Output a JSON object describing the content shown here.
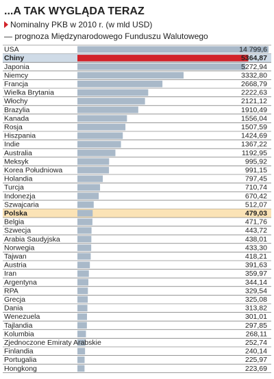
{
  "chart_data": {
    "type": "bar",
    "title": "...A TAK WYGLĄDA TERAZ",
    "subtitle": [
      "Nominalny PKB w 2010 r. (w mld USD)",
      "— prognoza Międzynarodowego Funduszu Walutowego"
    ],
    "categories": [
      "USA",
      "Chiny",
      "Japonia",
      "Niemcy",
      "Francja",
      "Wielka Brytania",
      "Włochy",
      "Brazylia",
      "Kanada",
      "Rosja",
      "Hiszpania",
      "Indie",
      "Australia",
      "Meksyk",
      "Korea Południowa",
      "Holandia",
      "Turcja",
      "Indonezja",
      "Szwajcaria",
      "Polska",
      "Belgia",
      "Szwecja",
      "Arabia Saudyjska",
      "Norwegia",
      "Tajwan",
      "Austria",
      "Iran",
      "Argentyna",
      "RPA",
      "Grecja",
      "Dania",
      "Wenezuela",
      "Tajlandia",
      "Kolumbia",
      "Zjednoczone Emiraty Arabskie",
      "Finlandia",
      "Portugalia",
      "Hongkong"
    ],
    "values": [
      14799.6,
      5364.87,
      5272.94,
      3332.8,
      2668.79,
      2222.63,
      2121.12,
      1910.49,
      1556.04,
      1507.59,
      1424.69,
      1367.22,
      1192.95,
      995.92,
      991.15,
      797.45,
      710.74,
      670.42,
      512.07,
      479.03,
      471.76,
      443.72,
      438.01,
      433.3,
      418.21,
      391.63,
      359.97,
      344.14,
      329.54,
      325.08,
      313.82,
      301.01,
      297.85,
      268.11,
      252.74,
      240.14,
      225.97,
      223.69
    ],
    "value_labels": [
      "14 799,6",
      "5364,87",
      "5272,94",
      "3332,80",
      "2668,79",
      "2222,63",
      "2121,12",
      "1910,49",
      "1556,04",
      "1507,59",
      "1424,69",
      "1367,22",
      "1192,95",
      "995,92",
      "991,15",
      "797,45",
      "710,74",
      "670,42",
      "512,07",
      "479,03",
      "471,76",
      "443,72",
      "438,01",
      "433,30",
      "418,21",
      "391,63",
      "359,97",
      "344,14",
      "329,54",
      "325,08",
      "313,82",
      "301,01",
      "297,85",
      "268,11",
      "252,74",
      "240,14",
      "225,97",
      "223,69"
    ],
    "color": "#a9b9c9",
    "bar_colors": [
      null,
      "#d2232a",
      null,
      null,
      null,
      null,
      null,
      null,
      null,
      null,
      null,
      null,
      null,
      null,
      null,
      null,
      null,
      null,
      null,
      null,
      null,
      null,
      null,
      null,
      null,
      null,
      null,
      null,
      null,
      null,
      null,
      null,
      null,
      null,
      null,
      null,
      null,
      null
    ],
    "row_colors": [
      null,
      "#cfdbe7",
      null,
      null,
      null,
      null,
      null,
      null,
      null,
      null,
      null,
      null,
      null,
      null,
      null,
      null,
      null,
      null,
      null,
      "#fbe3b6",
      null,
      null,
      null,
      null,
      null,
      null,
      null,
      null,
      null,
      null,
      null,
      null,
      null,
      null,
      null,
      null,
      null,
      null
    ]
  }
}
